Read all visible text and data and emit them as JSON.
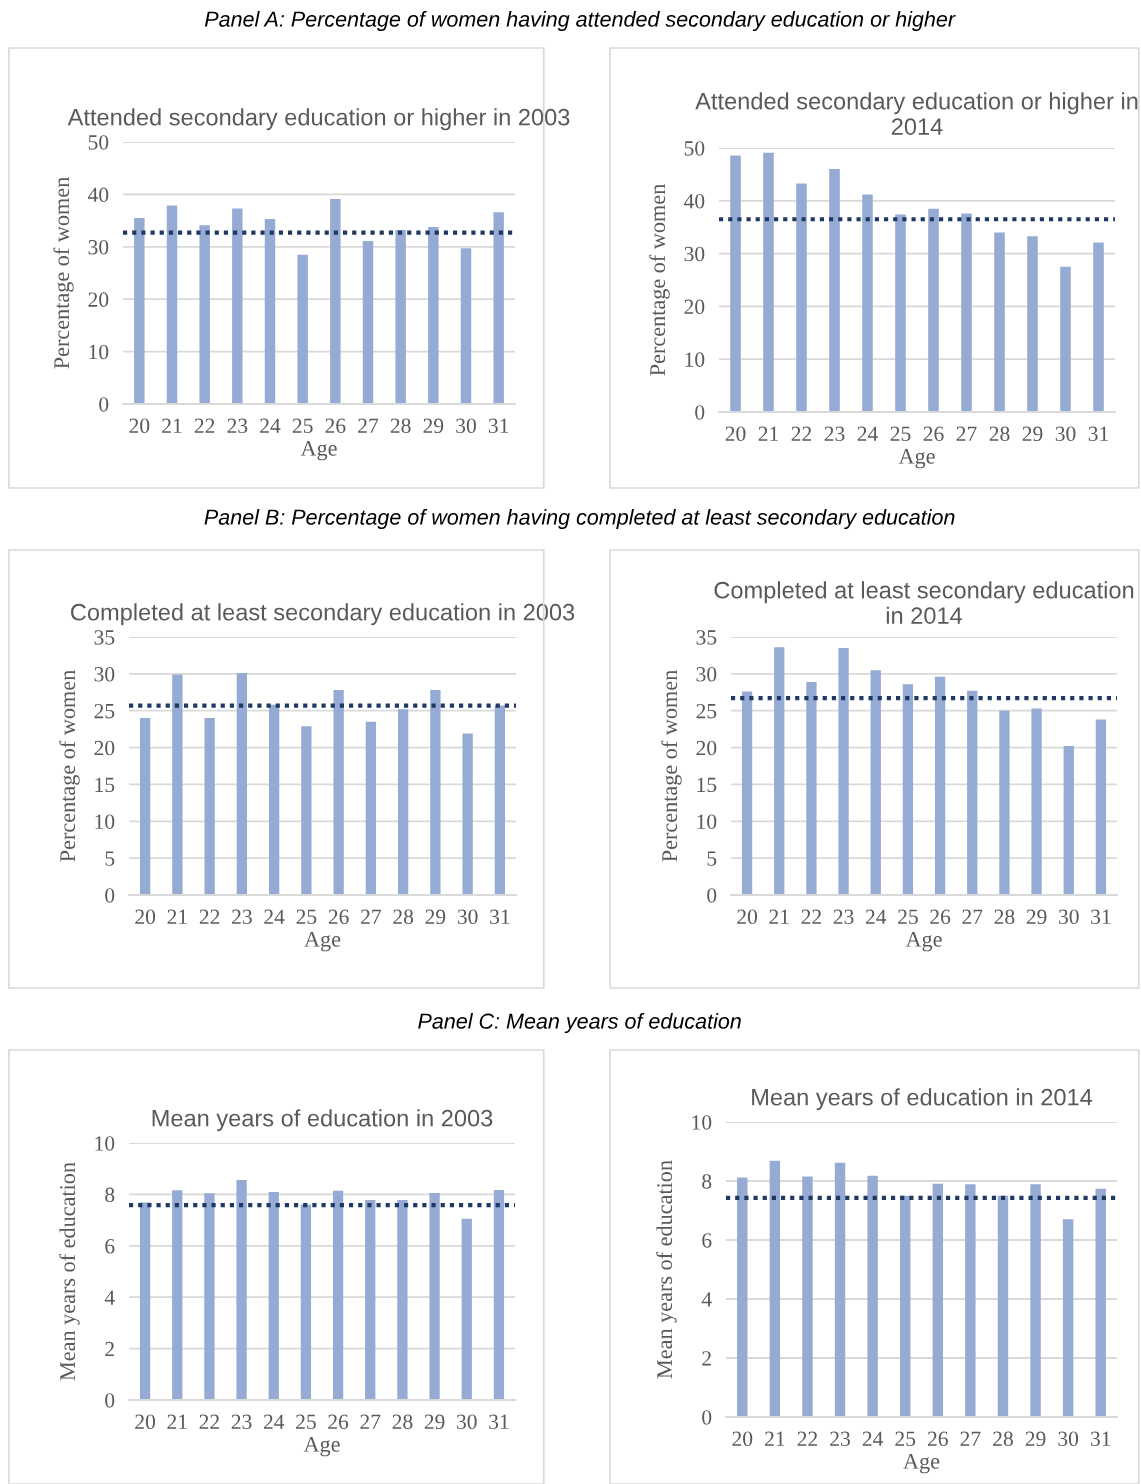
{
  "chart_data": [
    {
      "type": "bar",
      "title": "Attended secondary education or higher in 2003",
      "xlabel": "Age",
      "ylabel": "Percentage of women",
      "annotations": [
        "Panel A: Percentage of women having attended secondary education or higher"
      ],
      "categories": [
        "20",
        "21",
        "22",
        "23",
        "24",
        "25",
        "26",
        "27",
        "28",
        "29",
        "30",
        "31"
      ],
      "values": [
        35.5,
        37.9,
        34.1,
        37.3,
        35.3,
        28.5,
        39.1,
        31.1,
        33.2,
        33.8,
        29.7,
        36.6
      ],
      "color": "#95abd3",
      "ylim": [
        0,
        50
      ],
      "yticks": [
        0,
        10,
        20,
        30,
        40,
        50
      ],
      "grid": "y",
      "ref_lines": [
        {
          "axis": "y",
          "value": 32.7,
          "color": "#1f3864",
          "line_style": "dotted"
        }
      ]
    },
    {
      "type": "bar",
      "title": "Attended secondary education or higher in 2014",
      "xlabel": "Age",
      "ylabel": "Percentage of women",
      "categories": [
        "20",
        "21",
        "22",
        "23",
        "24",
        "25",
        "26",
        "27",
        "28",
        "29",
        "30",
        "31"
      ],
      "values": [
        48.6,
        49.1,
        43.3,
        46.0,
        41.2,
        37.4,
        38.5,
        37.6,
        34.0,
        33.3,
        27.5,
        32.1
      ],
      "color": "#95abd3",
      "ylim": [
        0,
        50
      ],
      "yticks": [
        0,
        10,
        20,
        30,
        40,
        50
      ],
      "grid": "y",
      "ref_lines": [
        {
          "axis": "y",
          "value": 36.5,
          "color": "#1f3864",
          "line_style": "dotted"
        }
      ]
    },
    {
      "type": "bar",
      "title": "Completed at least secondary education in 2003",
      "xlabel": "Age",
      "ylabel": "Percentage of women",
      "annotations": [
        "Panel B: Percentage of women having completed at least secondary education"
      ],
      "categories": [
        "20",
        "21",
        "22",
        "23",
        "24",
        "25",
        "26",
        "27",
        "28",
        "29",
        "30",
        "31"
      ],
      "values": [
        24.0,
        29.9,
        24.0,
        30.1,
        25.8,
        22.9,
        27.8,
        23.5,
        25.2,
        27.8,
        21.9,
        25.7
      ],
      "color": "#95abd3",
      "ylim": [
        0,
        35
      ],
      "yticks": [
        0,
        5,
        10,
        15,
        20,
        25,
        30,
        35
      ],
      "grid": "y",
      "ref_lines": [
        {
          "axis": "y",
          "value": 25.7,
          "color": "#1f3864",
          "line_style": "dotted"
        }
      ]
    },
    {
      "type": "bar",
      "title": "Completed at least secondary education in 2014",
      "xlabel": "Age",
      "ylabel": "Percentage of women",
      "categories": [
        "20",
        "21",
        "22",
        "23",
        "24",
        "25",
        "26",
        "27",
        "28",
        "29",
        "30",
        "31"
      ],
      "values": [
        27.6,
        33.6,
        28.9,
        33.5,
        30.5,
        28.6,
        29.6,
        27.7,
        25.0,
        25.3,
        20.2,
        23.8
      ],
      "color": "#95abd3",
      "ylim": [
        0,
        35
      ],
      "yticks": [
        0,
        5,
        10,
        15,
        20,
        25,
        30,
        35
      ],
      "grid": "y",
      "ref_lines": [
        {
          "axis": "y",
          "value": 26.7,
          "color": "#1f3864",
          "line_style": "dotted"
        }
      ]
    },
    {
      "type": "bar",
      "title": "Mean years of education in 2003",
      "xlabel": "Age",
      "ylabel": "Mean years of education",
      "annotations": [
        "Panel C: Mean years of education"
      ],
      "categories": [
        "20",
        "21",
        "22",
        "23",
        "24",
        "25",
        "26",
        "27",
        "28",
        "29",
        "30",
        "31"
      ],
      "values": [
        7.68,
        8.16,
        8.04,
        8.56,
        8.09,
        7.61,
        8.14,
        7.78,
        7.78,
        8.05,
        7.05,
        8.17
      ],
      "color": "#95abd3",
      "ylim": [
        0,
        10
      ],
      "yticks": [
        0,
        2,
        4,
        6,
        8,
        10
      ],
      "grid": "y",
      "ref_lines": [
        {
          "axis": "y",
          "value": 7.58,
          "color": "#1f3864",
          "line_style": "dotted"
        }
      ]
    },
    {
      "type": "bar",
      "title": "Mean years of education in 2014",
      "xlabel": "Age",
      "ylabel": "Mean years of education",
      "categories": [
        "20",
        "21",
        "22",
        "23",
        "24",
        "25",
        "26",
        "27",
        "28",
        "29",
        "30",
        "31"
      ],
      "values": [
        8.12,
        8.69,
        8.15,
        8.62,
        8.18,
        7.5,
        7.91,
        7.89,
        7.5,
        7.89,
        6.7,
        7.74
      ],
      "color": "#95abd3",
      "ylim": [
        0,
        10
      ],
      "yticks": [
        0,
        2,
        4,
        6,
        8,
        10
      ],
      "grid": "y",
      "ref_lines": [
        {
          "axis": "y",
          "value": 7.43,
          "color": "#1f3864",
          "line_style": "dotted"
        }
      ]
    }
  ]
}
